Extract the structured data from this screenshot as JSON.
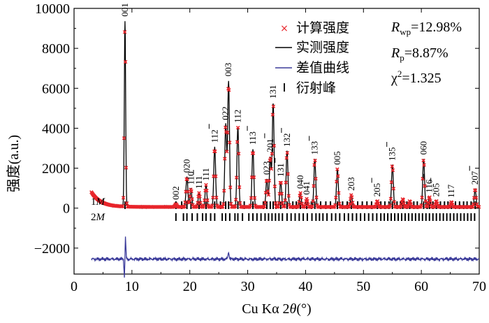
{
  "chart_data": {
    "type": "line",
    "xlabel_prefix": "Cu Kα 2",
    "xlabel_theta": "θ",
    "xlabel_suffix": "(°)",
    "ylabel": "强度(a.u.)",
    "xlim": [
      0,
      70
    ],
    "ylim": [
      -3300,
      10000
    ],
    "x_ticks": [
      0,
      10,
      20,
      30,
      40,
      50,
      60,
      70
    ],
    "y_ticks": [
      -2000,
      0,
      2000,
      4000,
      6000,
      8000,
      10000
    ],
    "legend": {
      "calc": "计算强度",
      "obs": "实测强度",
      "diff": "差值曲线",
      "bragg": "衍射峰"
    },
    "stats": {
      "rwp_label": "R",
      "rwp_sub": "wp",
      "rwp_value": "=12.98%",
      "rp_label": "R",
      "rp_sub": "p",
      "rp_value": "=8.87%",
      "chi_label": "χ",
      "chi_sup": "2",
      "chi_value": "=1.325"
    },
    "phases": [
      {
        "label_num": "1",
        "label_m": "M"
      },
      {
        "label_num": "2",
        "label_m": "M"
      }
    ],
    "colors": {
      "calc": "#e8242a",
      "obs": "#000000",
      "diff": "#3b3b9a",
      "bragg": "#000000"
    },
    "background": {
      "start": 800,
      "end": 60
    },
    "peaks": [
      {
        "x": 8.8,
        "y": 9300,
        "label": "001"
      },
      {
        "x": 17.6,
        "y": 150,
        "label": "002"
      },
      {
        "x": 19.5,
        "y": 1500,
        "label": "020"
      },
      {
        "x": 20.2,
        "y": 900,
        "label": "110"
      },
      {
        "x": 21.6,
        "y": 700,
        "label": "111",
        "bar": true
      },
      {
        "x": 22.8,
        "y": 1100,
        "label": "111"
      },
      {
        "x": 24.3,
        "y": 3000,
        "label": "112",
        "bar": true
      },
      {
        "x": 26.2,
        "y": 4100,
        "label": "022"
      },
      {
        "x": 26.7,
        "y": 6300,
        "label": "003"
      },
      {
        "x": 28.3,
        "y": 4000,
        "label": "112"
      },
      {
        "x": 30.9,
        "y": 2900,
        "label": "113",
        "bar": true
      },
      {
        "x": 33.3,
        "y": 1400,
        "label": "023"
      },
      {
        "x": 33.9,
        "y": 2500,
        "label": "201",
        "bar": true
      },
      {
        "x": 34.4,
        "y": 5200,
        "label": "131"
      },
      {
        "x": 35.7,
        "y": 1300,
        "label": "131",
        "bar": true
      },
      {
        "x": 36.8,
        "y": 2800,
        "label": "132",
        "bar": true
      },
      {
        "x": 39.1,
        "y": 700,
        "label": "040"
      },
      {
        "x": 40.2,
        "y": 400,
        "label": "041"
      },
      {
        "x": 41.6,
        "y": 2400,
        "label": "133",
        "bar": true
      },
      {
        "x": 45.5,
        "y": 1900,
        "label": "005"
      },
      {
        "x": 47.9,
        "y": 600,
        "label": "203"
      },
      {
        "x": 52.4,
        "y": 300,
        "label": "205",
        "bar": true
      },
      {
        "x": 55.0,
        "y": 2100,
        "label": "135",
        "bar": true
      },
      {
        "x": 56.8,
        "y": 400,
        "label": ""
      },
      {
        "x": 58.0,
        "y": 300,
        "label": ""
      },
      {
        "x": 60.4,
        "y": 2400,
        "label": "060"
      },
      {
        "x": 61.4,
        "y": 500,
        "label": "116",
        "bar": true
      },
      {
        "x": 62.6,
        "y": 300,
        "label": "205",
        "bar": true
      },
      {
        "x": 65.2,
        "y": 250,
        "label": "117"
      },
      {
        "x": 69.3,
        "y": 900,
        "label": "207",
        "bar": true
      }
    ],
    "bragg_phase1": [
      8.8,
      17.6,
      18.6,
      19.5,
      20.2,
      21.6,
      22.8,
      24.3,
      25.3,
      26.2,
      26.7,
      28.3,
      29.4,
      30.9,
      32.7,
      33.3,
      33.9,
      34.4,
      34.9,
      35.7,
      36.8,
      37.8,
      38.4,
      39.1,
      40.2,
      41.0,
      41.6,
      42.6,
      43.5,
      44.3,
      45.5,
      46.4,
      47.2,
      47.9,
      49.0,
      49.8,
      50.6,
      51.4,
      52.4,
      53.0,
      53.7,
      54.4,
      55.0,
      55.8,
      56.4,
      56.8,
      57.5,
      58.0,
      58.7,
      59.3,
      60.4,
      61.0,
      61.4,
      62.0,
      62.6,
      63.3,
      64.0,
      64.6,
      65.2,
      65.9,
      66.6,
      67.3,
      67.9,
      68.6,
      69.3
    ],
    "bragg_phase2": [
      17.6,
      18.9,
      19.5,
      20.4,
      21.3,
      22.2,
      22.8,
      23.6,
      24.3,
      25.6,
      26.2,
      26.9,
      27.8,
      28.3,
      29.1,
      30.2,
      30.9,
      31.6,
      32.3,
      33.0,
      33.6,
      34.2,
      34.8,
      35.4,
      36.0,
      36.8,
      37.5,
      38.2,
      38.9,
      39.6,
      40.3,
      41.1,
      41.8,
      42.4,
      43.0,
      43.7,
      44.5,
      45.2,
      45.9,
      46.7,
      47.4,
      48.1,
      48.8,
      49.5,
      50.2,
      50.9,
      51.6,
      52.3,
      53.0,
      53.6,
      54.2,
      54.8,
      55.4,
      56.0,
      56.6,
      57.2,
      57.8,
      58.4,
      59.0,
      59.6,
      60.2,
      60.8,
      61.4,
      62.0,
      62.6,
      63.2,
      63.8,
      64.4,
      65.0,
      65.6,
      66.2,
      66.8,
      67.4,
      68.0,
      68.6,
      69.2
    ]
  }
}
